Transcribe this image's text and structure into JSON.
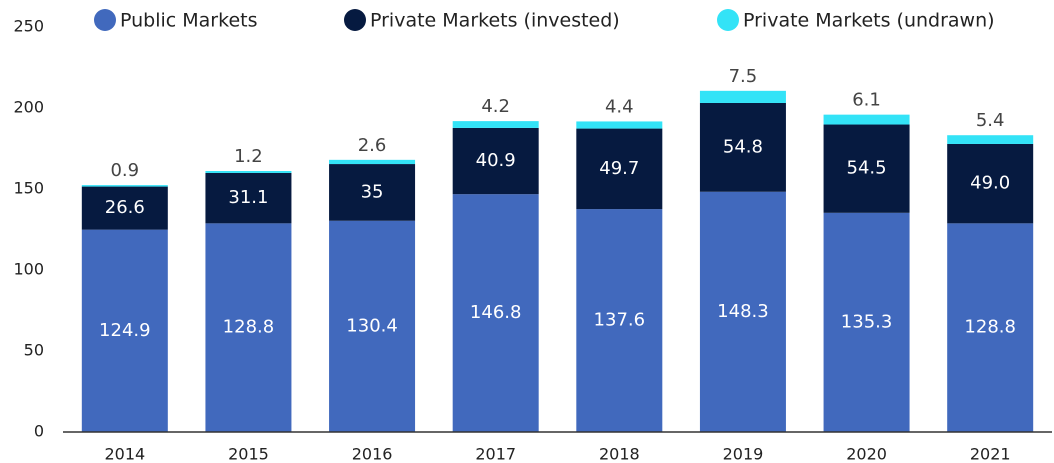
{
  "chart_data": {
    "type": "stacked_bar",
    "categories": [
      "2014",
      "2015",
      "2016",
      "2017",
      "2018",
      "2019",
      "2020",
      "2021"
    ],
    "series": [
      {
        "name": "Public Markets",
        "color": "#4169bd",
        "values": [
          124.9,
          128.8,
          130.4,
          146.8,
          137.6,
          148.3,
          135.3,
          128.8
        ]
      },
      {
        "name": "Private Markets (invested)",
        "color": "#061a40",
        "values": [
          26.6,
          31.1,
          35,
          40.9,
          49.7,
          54.8,
          54.5,
          49.0
        ],
        "value_labels": [
          "26.6",
          "31.1",
          "35",
          "40.9",
          "49.7",
          "54.8",
          "54.5",
          "49.0"
        ]
      },
      {
        "name": "Private Markets (undrawn)",
        "color": "#33e3f7",
        "values": [
          0.9,
          1.2,
          2.6,
          4.2,
          4.4,
          7.5,
          6.1,
          5.4
        ]
      }
    ],
    "ylim": [
      0,
      250
    ],
    "yticks": [
      0,
      50,
      100,
      150,
      200,
      250
    ]
  }
}
